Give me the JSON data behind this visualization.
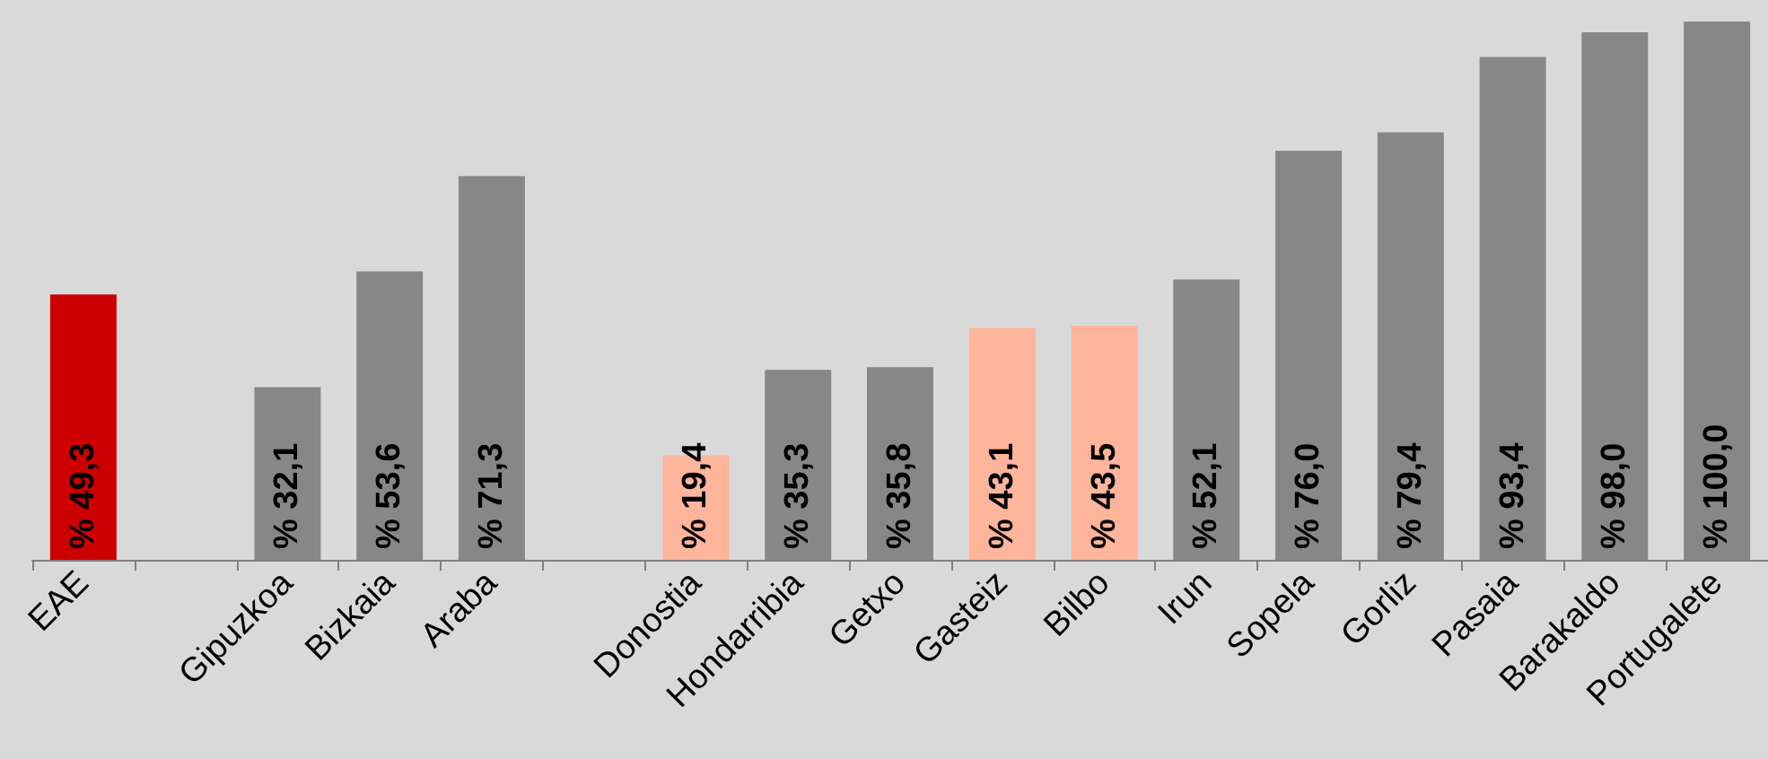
{
  "chart_data": {
    "type": "bar",
    "categories": [
      "EAE",
      null,
      "Gipuzkoa",
      "Bizkaia",
      "Araba",
      null,
      "Donostia",
      "Hondarribia",
      "Getxo",
      "Gasteiz",
      "Bilbo",
      "Irun",
      "Sopela",
      "Gorliz",
      "Pasaia",
      "Barakaldo",
      "Portugalete"
    ],
    "values": [
      49.3,
      null,
      32.1,
      53.6,
      71.3,
      null,
      19.4,
      35.3,
      35.8,
      43.1,
      43.5,
      52.1,
      76.0,
      79.4,
      93.4,
      98.0,
      100.0
    ],
    "value_labels": [
      "% 49,3",
      null,
      "% 32,1",
      "% 53,6",
      "% 71,3",
      null,
      "% 19,4",
      "% 35,3",
      "% 35,8",
      "% 43,1",
      "% 43,5",
      "% 52,1",
      "% 76,0",
      "% 79,4",
      "% 93,4",
      "% 98,0",
      "% 100,0"
    ],
    "colors": [
      "#cc0000",
      null,
      "#878787",
      "#878787",
      "#878787",
      null,
      "#ffb49c",
      "#878787",
      "#878787",
      "#ffb49c",
      "#ffb49c",
      "#878787",
      "#878787",
      "#878787",
      "#878787",
      "#878787",
      "#878787"
    ],
    "grid": false
  }
}
